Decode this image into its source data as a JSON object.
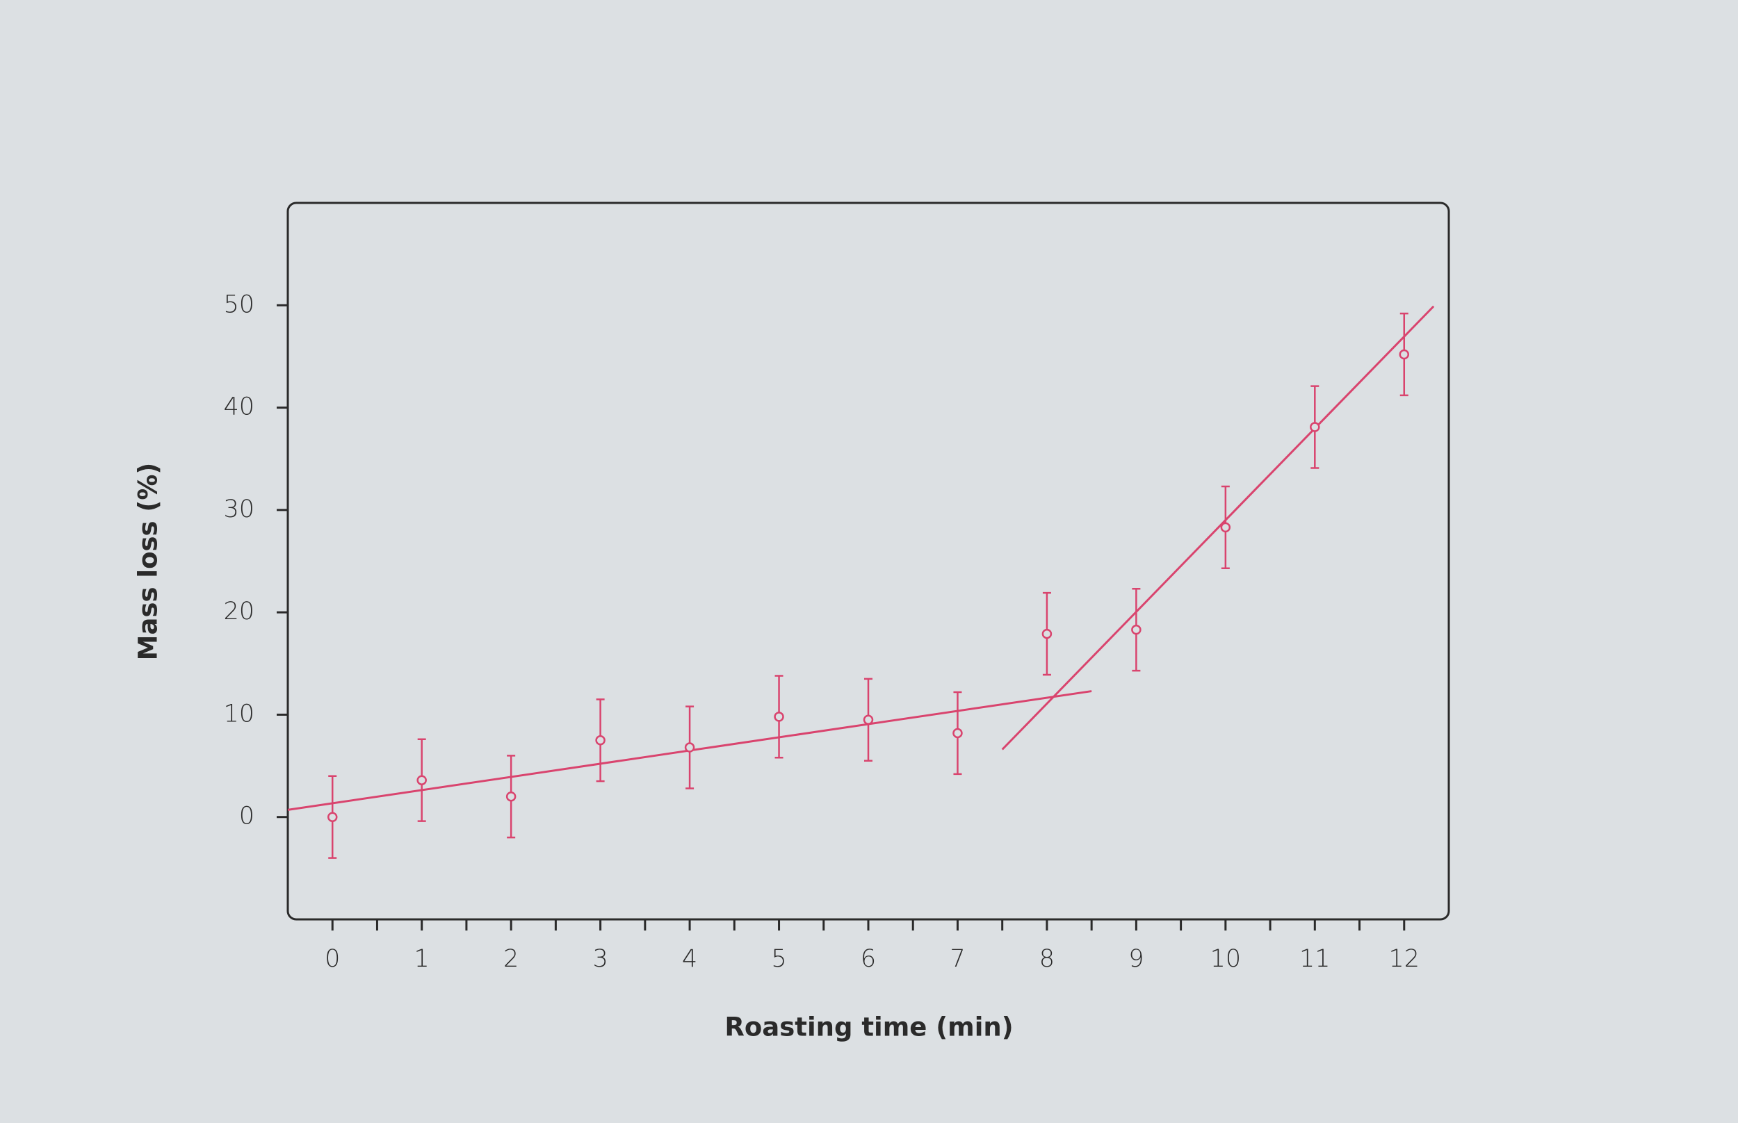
{
  "chart_data": {
    "type": "scatter",
    "x_label": "Roasting time (min)",
    "y_label": "Mass loss (%)",
    "xlim": [
      -0.5,
      12.5
    ],
    "ylim": [
      -10,
      60
    ],
    "xticks": [
      0,
      1,
      2,
      3,
      4,
      5,
      6,
      7,
      8,
      9,
      10,
      11,
      12
    ],
    "xminorticks": [
      0.5,
      1.5,
      2.5,
      3.5,
      4.5,
      5.5,
      6.5,
      7.5,
      8.5,
      9.5,
      10.5,
      11.5
    ],
    "yticks": [
      0,
      10,
      20,
      30,
      40,
      50
    ],
    "series": [
      {
        "color": "#d9446e",
        "x": [
          0,
          1,
          2,
          3,
          4,
          5,
          6,
          7,
          8,
          9,
          10,
          11,
          12
        ],
        "values": [
          0,
          3.6,
          2.0,
          7.5,
          6.8,
          9.8,
          9.5,
          8.2,
          17.9,
          18.3,
          28.3,
          38.1,
          45.2
        ],
        "errors": [
          4,
          4,
          4,
          4,
          4,
          4,
          4,
          4,
          4,
          4,
          4,
          4,
          4
        ]
      }
    ],
    "fits": [
      {
        "color": "#d9446e",
        "x": [
          -0.5,
          8.5
        ],
        "values": [
          0.7,
          12.3
        ]
      },
      {
        "color": "#d9446e",
        "x": [
          7.5,
          12.33
        ],
        "values": [
          6.6,
          49.9
        ]
      }
    ]
  }
}
